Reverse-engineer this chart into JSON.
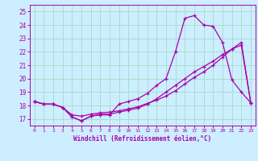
{
  "xlabel": "Windchill (Refroidissement éolien,°C)",
  "ylabel": "",
  "xlim": [
    -0.5,
    23.5
  ],
  "ylim": [
    16.5,
    25.5
  ],
  "yticks": [
    17,
    18,
    19,
    20,
    21,
    22,
    23,
    24,
    25
  ],
  "xticks": [
    0,
    1,
    2,
    3,
    4,
    5,
    6,
    7,
    8,
    9,
    10,
    11,
    12,
    13,
    14,
    15,
    16,
    17,
    18,
    19,
    20,
    21,
    22,
    23
  ],
  "bg_color": "#cceeff",
  "grid_color": "#aaddcc",
  "line_color": "#aa00aa",
  "line1_x": [
    0,
    1,
    2,
    3,
    4,
    5,
    6,
    7,
    8,
    9,
    10,
    11,
    12,
    13,
    14,
    15,
    16,
    17,
    18,
    19,
    20,
    21,
    22,
    23
  ],
  "line1_y": [
    18.3,
    18.1,
    18.1,
    17.85,
    17.15,
    16.85,
    17.2,
    17.3,
    17.3,
    18.1,
    18.3,
    18.5,
    18.9,
    19.5,
    20.0,
    22.0,
    24.5,
    24.7,
    24.0,
    23.9,
    22.7,
    19.9,
    19.0,
    18.2
  ],
  "line2_x": [
    0,
    1,
    2,
    3,
    4,
    5,
    6,
    7,
    8,
    9,
    10,
    11,
    12,
    13,
    14,
    15,
    16,
    17,
    18,
    19,
    20,
    21,
    22,
    23
  ],
  "line2_y": [
    18.3,
    18.1,
    18.1,
    17.85,
    17.3,
    17.2,
    17.35,
    17.45,
    17.5,
    17.6,
    17.75,
    17.9,
    18.15,
    18.4,
    18.7,
    19.1,
    19.6,
    20.1,
    20.5,
    21.0,
    21.6,
    22.2,
    22.5,
    18.2
  ],
  "line3_x": [
    0,
    1,
    2,
    3,
    4,
    5,
    6,
    7,
    8,
    9,
    10,
    11,
    12,
    13,
    14,
    15,
    16,
    17,
    18,
    19,
    20,
    21,
    22,
    23
  ],
  "line3_y": [
    18.3,
    18.1,
    18.1,
    17.85,
    17.15,
    16.85,
    17.2,
    17.35,
    17.35,
    17.5,
    17.65,
    17.8,
    18.1,
    18.5,
    19.0,
    19.5,
    20.0,
    20.5,
    20.9,
    21.3,
    21.8,
    22.2,
    22.7,
    18.2
  ]
}
